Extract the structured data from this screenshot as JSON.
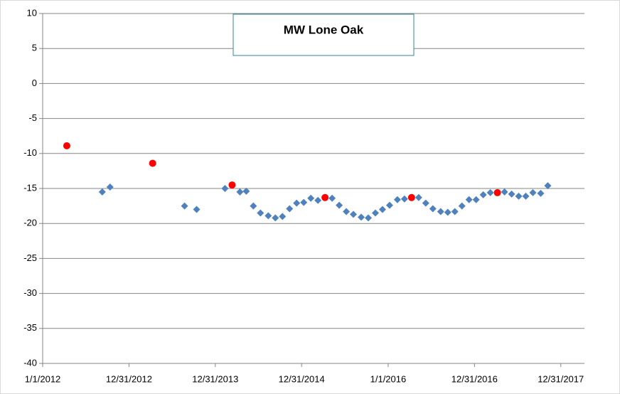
{
  "chart_data": {
    "type": "scatter",
    "title": "MW Lone Oak",
    "xlim": [
      40909,
      43200
    ],
    "xticks": [
      {
        "value": 40909,
        "label": "1/1/2012"
      },
      {
        "value": 41274,
        "label": "12/31/2012"
      },
      {
        "value": 41639,
        "label": "12/31/2013"
      },
      {
        "value": 42004,
        "label": "12/31/2014"
      },
      {
        "value": 42370,
        "label": "1/1/2016"
      },
      {
        "value": 42735,
        "label": "12/31/2016"
      },
      {
        "value": 43100,
        "label": "12/31/2017"
      }
    ],
    "ylim": [
      -40,
      10
    ],
    "yticks": [
      -40,
      -35,
      -30,
      -25,
      -20,
      -15,
      -10,
      -5,
      0,
      5,
      10
    ],
    "grid": true,
    "series": [
      {
        "color": "#4f81bd",
        "marker": "diamond",
        "x": [
          41161,
          41194,
          41509,
          41560,
          41680,
          41743,
          41770,
          41800,
          41830,
          41863,
          41893,
          41923,
          41953,
          41983,
          42013,
          42043,
          42073,
          42133,
          42163,
          42193,
          42223,
          42256,
          42286,
          42316,
          42346,
          42376,
          42409,
          42439,
          42499,
          42529,
          42559,
          42592,
          42622,
          42652,
          42682,
          42712,
          42742,
          42772,
          42802,
          42862,
          42892,
          42922,
          42952,
          42982,
          43015,
          43045
        ],
        "values": [
          -15.5,
          -14.8,
          -17.5,
          -18.0,
          -15.0,
          -15.5,
          -15.4,
          -17.5,
          -18.5,
          -18.9,
          -19.2,
          -19.0,
          -17.9,
          -17.1,
          -17.0,
          -16.4,
          -16.7,
          -16.4,
          -17.4,
          -18.3,
          -18.7,
          -19.1,
          -19.2,
          -18.5,
          -18.0,
          -17.4,
          -16.6,
          -16.5,
          -16.3,
          -17.1,
          -17.9,
          -18.3,
          -18.4,
          -18.3,
          -17.5,
          -16.6,
          -16.6,
          -15.9,
          -15.6,
          -15.5,
          -15.8,
          -16.1,
          -16.1,
          -15.6,
          -15.7,
          -14.6
        ]
      },
      {
        "color": "#ff0000",
        "marker": "circle",
        "x": [
          41011,
          41374,
          41710,
          42103,
          42469,
          42832
        ],
        "values": [
          -8.9,
          -11.4,
          -14.5,
          -16.3,
          -16.3,
          -15.6
        ]
      }
    ]
  }
}
